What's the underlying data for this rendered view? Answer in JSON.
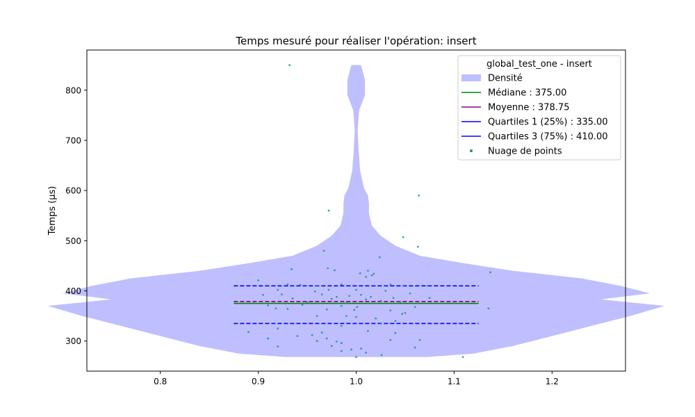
{
  "chart_data": {
    "type": "violin",
    "title": "Temps mesuré pour réaliser l'opération: insert",
    "xlabel": "",
    "ylabel": "Temps (µs)",
    "xlim": [
      0.725,
      1.275
    ],
    "ylim": [
      240,
      880
    ],
    "xticks": [
      0.8,
      0.9,
      1.0,
      1.1,
      1.2
    ],
    "xtick_labels": [
      "0.8",
      "0.9",
      "1.0",
      "1.1",
      "1.2"
    ],
    "yticks": [
      300,
      400,
      500,
      600,
      700,
      800
    ],
    "ytick_labels": [
      "300",
      "400",
      "500",
      "600",
      "700",
      "800"
    ],
    "grid": false,
    "legend": {
      "title": "global_test_one - insert",
      "placement": "top-right",
      "entries": [
        {
          "label": "Densité",
          "kind": "patch",
          "color": "#bfbfff"
        },
        {
          "label": "Médiane : 375.00",
          "kind": "line",
          "color": "#008000"
        },
        {
          "label": "Moyenne : 378.75",
          "kind": "line",
          "color": "#800080"
        },
        {
          "label": "Quartiles 1 (25%) : 335.00",
          "kind": "line",
          "color": "#0000ff"
        },
        {
          "label": "Quartiles 3 (75%) : 410.00",
          "kind": "line",
          "color": "#0000ff"
        },
        {
          "label": "Nuage de points",
          "kind": "point",
          "color": "#1f8f8f"
        }
      ]
    },
    "violin": {
      "center": 1.0,
      "color": "#bfbfff",
      "profile": [
        [
          268,
          0.072
        ],
        [
          275,
          0.12
        ],
        [
          290,
          0.16
        ],
        [
          310,
          0.2
        ],
        [
          330,
          0.24
        ],
        [
          350,
          0.28
        ],
        [
          370,
          0.315
        ],
        [
          383,
          0.25
        ],
        [
          395,
          0.3
        ],
        [
          410,
          0.27
        ],
        [
          425,
          0.23
        ],
        [
          440,
          0.16
        ],
        [
          455,
          0.11
        ],
        [
          470,
          0.065
        ],
        [
          490,
          0.04
        ],
        [
          510,
          0.025
        ],
        [
          530,
          0.016
        ],
        [
          555,
          0.013
        ],
        [
          575,
          0.013
        ],
        [
          590,
          0.012
        ],
        [
          605,
          0.008
        ],
        [
          640,
          0.004
        ],
        [
          680,
          0.0025
        ],
        [
          720,
          0.0015
        ],
        [
          760,
          0.003
        ],
        [
          790,
          0.009
        ],
        [
          820,
          0.009
        ],
        [
          850,
          0.005
        ]
      ]
    },
    "stat_lines": [
      {
        "name": "Médiane",
        "y": 375.0,
        "color": "#008000",
        "dash": false,
        "x0": 0.875,
        "x1": 1.125
      },
      {
        "name": "Moyenne",
        "y": 378.75,
        "color": "#800080",
        "dash": true,
        "x0": 0.875,
        "x1": 1.125
      },
      {
        "name": "Quartiles 1 (25%)",
        "y": 335.0,
        "color": "#0000ff",
        "dash": true,
        "x0": 0.875,
        "x1": 1.125
      },
      {
        "name": "Quartiles 3 (75%)",
        "y": 410.0,
        "color": "#0000ff",
        "dash": true,
        "x0": 0.875,
        "x1": 1.125
      }
    ],
    "points": {
      "color": "#1f8f8f",
      "values": [
        [
          0.932,
          850
        ],
        [
          0.972,
          560
        ],
        [
          1.064,
          590
        ],
        [
          1.048,
          507
        ],
        [
          1.063,
          488
        ],
        [
          0.967,
          480
        ],
        [
          1.024,
          467
        ],
        [
          1.137,
          437
        ],
        [
          0.934,
          443
        ],
        [
          0.971,
          445
        ],
        [
          0.978,
          441
        ],
        [
          1.012,
          440
        ],
        [
          1.004,
          435
        ],
        [
          1.018,
          434
        ],
        [
          1.016,
          431
        ],
        [
          1.01,
          428
        ],
        [
          0.9,
          421
        ],
        [
          0.93,
          413
        ],
        [
          0.943,
          412
        ],
        [
          0.96,
          410
        ],
        [
          0.985,
          413
        ],
        [
          1.035,
          413
        ],
        [
          1.048,
          410
        ],
        [
          1.073,
          410
        ],
        [
          0.92,
          402
        ],
        [
          0.972,
          402
        ],
        [
          1.0,
          402
        ],
        [
          1.03,
          400
        ],
        [
          0.958,
          399
        ],
        [
          0.924,
          393
        ],
        [
          0.965,
          393
        ],
        [
          1.005,
          392
        ],
        [
          1.055,
          395
        ],
        [
          0.905,
          392
        ],
        [
          0.98,
          388
        ],
        [
          0.993,
          390
        ],
        [
          1.015,
          388
        ],
        [
          1.038,
          386
        ],
        [
          1.075,
          386
        ],
        [
          0.935,
          385
        ],
        [
          0.975,
          384
        ],
        [
          1.01,
          383
        ],
        [
          1.025,
          380
        ],
        [
          0.95,
          377
        ],
        [
          0.99,
          376
        ],
        [
          1.02,
          375
        ],
        [
          1.045,
          378
        ],
        [
          0.91,
          371
        ],
        [
          0.945,
          372
        ],
        [
          0.985,
          370
        ],
        [
          1.001,
          368
        ],
        [
          1.06,
          368
        ],
        [
          0.918,
          365
        ],
        [
          0.93,
          364
        ],
        [
          0.97,
          363
        ],
        [
          0.998,
          362
        ],
        [
          1.035,
          361
        ],
        [
          1.05,
          356
        ],
        [
          1.047,
          354
        ],
        [
          0.99,
          350
        ],
        [
          0.96,
          350
        ],
        [
          1.0,
          348
        ],
        [
          1.02,
          345
        ],
        [
          1.04,
          340
        ],
        [
          1.025,
          335
        ],
        [
          0.985,
          330
        ],
        [
          0.92,
          325
        ],
        [
          0.89,
          318
        ],
        [
          1.012,
          320
        ],
        [
          0.965,
          317
        ],
        [
          0.955,
          312
        ],
        [
          0.94,
          310
        ],
        [
          1.04,
          316
        ],
        [
          0.91,
          305
        ],
        [
          0.97,
          305
        ],
        [
          0.96,
          300
        ],
        [
          0.98,
          299
        ],
        [
          0.985,
          296
        ],
        [
          1.035,
          302
        ],
        [
          1.065,
          302
        ],
        [
          0.92,
          289
        ],
        [
          0.975,
          290
        ],
        [
          1.06,
          287
        ],
        [
          0.995,
          283
        ],
        [
          0.985,
          280
        ],
        [
          1.005,
          285
        ],
        [
          1.01,
          277
        ],
        [
          1.026,
          272
        ],
        [
          1.0,
          268
        ],
        [
          1.109,
          268
        ],
        [
          1.135,
          365
        ]
      ]
    }
  }
}
